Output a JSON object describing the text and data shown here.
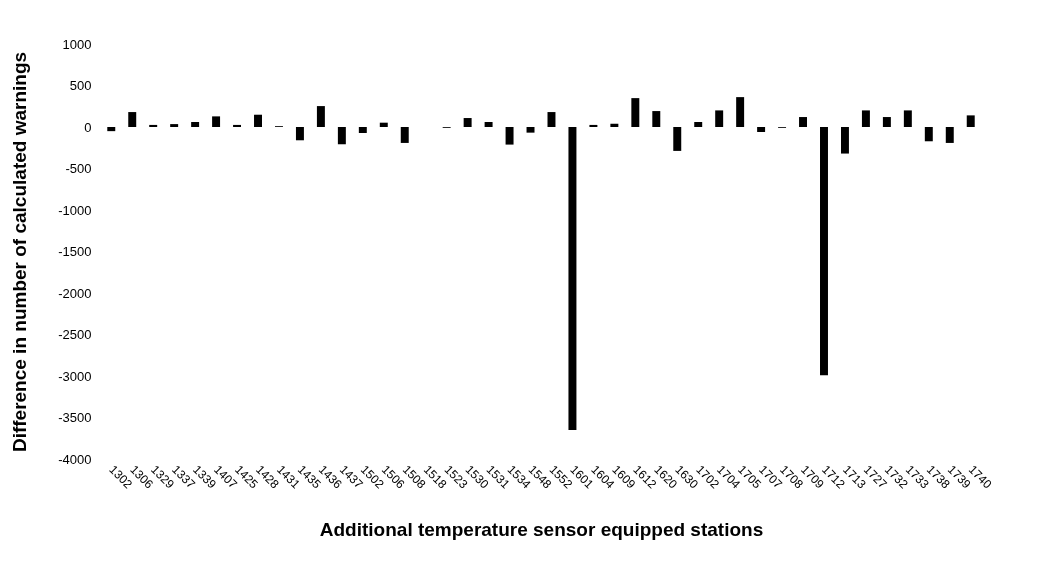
{
  "chart_data": {
    "type": "bar",
    "xlabel": "Additional temperature sensor equipped stations",
    "ylabel": "Difference in number of calculated warnings",
    "categories": [
      "1302",
      "1306",
      "1329",
      "1337",
      "1339",
      "1407",
      "1425",
      "1428",
      "1431",
      "1435",
      "1436",
      "1437",
      "1502",
      "1506",
      "1508",
      "1518",
      "1523",
      "1530",
      "1531",
      "1534",
      "1548",
      "1552",
      "1601",
      "1604",
      "1609",
      "1612",
      "1620",
      "1630",
      "1702",
      "1704",
      "1705",
      "1707",
      "1708",
      "1709",
      "1712",
      "1713",
      "1727",
      "1732",
      "1733",
      "1738",
      "1739",
      "1740"
    ],
    "values": [
      -50,
      180,
      25,
      35,
      60,
      128,
      25,
      148,
      10,
      -160,
      252,
      -208,
      -72,
      52,
      -192,
      0,
      -10,
      108,
      60,
      -212,
      -68,
      180,
      -3650,
      25,
      40,
      348,
      192,
      -288,
      60,
      200,
      360,
      -60,
      -10,
      120,
      -2990,
      -320,
      200,
      120,
      200,
      -172,
      -192,
      140
    ],
    "color": "#000000",
    "ylim": [
      -4000,
      1000
    ],
    "yticks": [
      -4000,
      -3500,
      -3000,
      -2500,
      -2000,
      -1500,
      -1000,
      -500,
      0,
      500,
      1000
    ],
    "grid": false
  }
}
